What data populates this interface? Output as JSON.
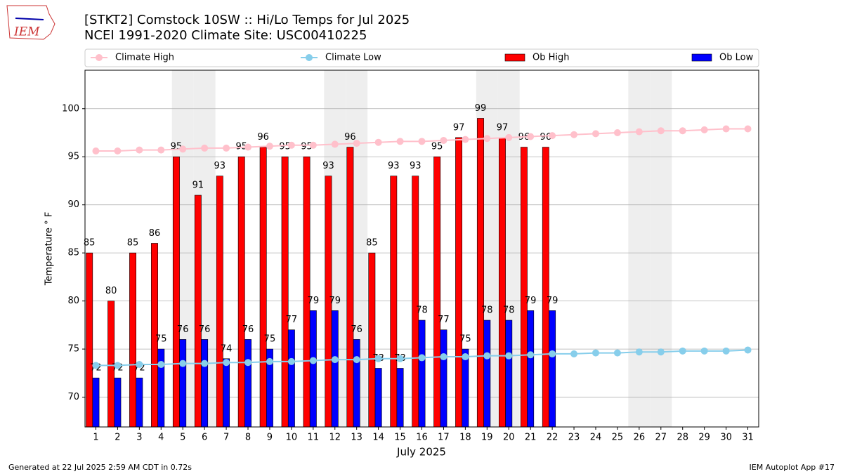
{
  "logo_text": "IEM",
  "chart_data": {
    "type": "bar",
    "title": "[STKT2] Comstock 10SW :: Hi/Lo Temps for Jul 2025",
    "subtitle": "NCEI 1991-2020 Climate Site: USC00410225",
    "xlabel": "July 2025",
    "ylabel": "Temperature ° F",
    "footer_left": "Generated at 22 Jul 2025 2:59 AM CDT in 0.72s",
    "footer_right": "IEM Autoplot App #17",
    "x": [
      1,
      2,
      3,
      4,
      5,
      6,
      7,
      8,
      9,
      10,
      11,
      12,
      13,
      14,
      15,
      16,
      17,
      18,
      19,
      20,
      21,
      22,
      23,
      24,
      25,
      26,
      27,
      28,
      29,
      30,
      31
    ],
    "shaded_days": [
      5,
      6,
      12,
      13,
      19,
      20,
      26,
      27
    ],
    "series": [
      {
        "name": "Climate High",
        "kind": "line",
        "color": "#ffc0cb",
        "values": [
          95.6,
          95.6,
          95.7,
          95.7,
          95.8,
          95.9,
          95.9,
          96.0,
          96.1,
          96.2,
          96.2,
          96.3,
          96.4,
          96.5,
          96.6,
          96.6,
          96.7,
          96.8,
          96.9,
          97.0,
          97.1,
          97.2,
          97.3,
          97.4,
          97.5,
          97.6,
          97.7,
          97.7,
          97.8,
          97.9,
          97.9
        ]
      },
      {
        "name": "Climate Low",
        "kind": "line",
        "color": "#87ceeb",
        "values": [
          73.3,
          73.3,
          73.4,
          73.4,
          73.5,
          73.5,
          73.6,
          73.6,
          73.7,
          73.7,
          73.8,
          73.9,
          73.9,
          74.0,
          74.0,
          74.1,
          74.2,
          74.2,
          74.3,
          74.3,
          74.4,
          74.5,
          74.5,
          74.6,
          74.6,
          74.7,
          74.7,
          74.8,
          74.8,
          74.8,
          74.9
        ]
      },
      {
        "name": "Ob High",
        "kind": "bar",
        "color": "#ff0000",
        "values": [
          85,
          80,
          85,
          86,
          95,
          91,
          93,
          95,
          96,
          95,
          95,
          93,
          96,
          85,
          93,
          93,
          95,
          97,
          99,
          97,
          96,
          96,
          null,
          null,
          null,
          null,
          null,
          null,
          null,
          null,
          null
        ]
      },
      {
        "name": "Ob Low",
        "kind": "bar",
        "color": "#0000ff",
        "values": [
          72,
          72,
          72,
          75,
          76,
          76,
          74,
          76,
          75,
          77,
          79,
          79,
          76,
          73,
          73,
          78,
          77,
          75,
          78,
          78,
          79,
          79,
          null,
          null,
          null,
          null,
          null,
          null,
          null,
          null,
          null
        ]
      }
    ],
    "xlim": [
      0.5,
      31.5
    ],
    "xticks": [
      1,
      2,
      3,
      4,
      5,
      6,
      7,
      8,
      9,
      10,
      11,
      12,
      13,
      14,
      15,
      16,
      17,
      18,
      19,
      20,
      21,
      22,
      23,
      24,
      25,
      26,
      27,
      28,
      29,
      30,
      31
    ],
    "ylim": [
      66.9,
      104
    ],
    "yticks": [
      70,
      75,
      80,
      85,
      90,
      95,
      100
    ],
    "grid": true
  }
}
